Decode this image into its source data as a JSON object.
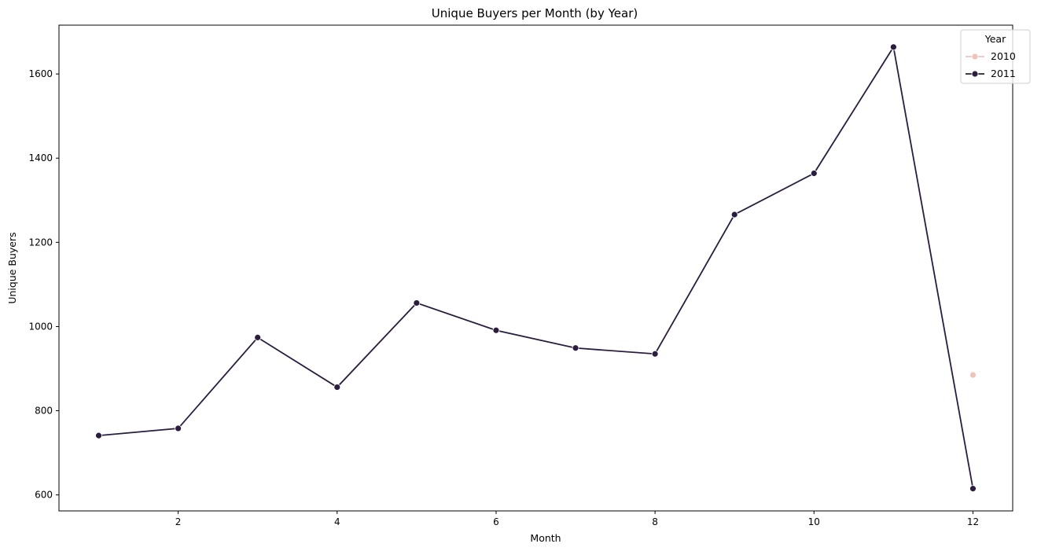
{
  "chart_data": {
    "type": "line",
    "title": "Unique Buyers per Month (by Year)",
    "xlabel": "Month",
    "ylabel": "Unique Buyers",
    "xlim": [
      0.5,
      12.5
    ],
    "ylim": [
      562,
      1716
    ],
    "xticks": [
      2,
      4,
      6,
      8,
      10,
      12
    ],
    "yticks": [
      600,
      800,
      1000,
      1200,
      1400,
      1600
    ],
    "grid": false,
    "legend": {
      "title": "Year",
      "position": "top-right",
      "entries": [
        "2010",
        "2011"
      ]
    },
    "series": [
      {
        "name": "2010",
        "color": "#ebc4bd",
        "x": [
          12
        ],
        "values": [
          885
        ]
      },
      {
        "name": "2011",
        "color": "#2a1d3f",
        "x": [
          1,
          2,
          3,
          4,
          5,
          6,
          7,
          8,
          9,
          10,
          11,
          12
        ],
        "values": [
          741,
          758,
          974,
          856,
          1056,
          991,
          949,
          935,
          1266,
          1364,
          1664,
          615
        ]
      }
    ]
  }
}
